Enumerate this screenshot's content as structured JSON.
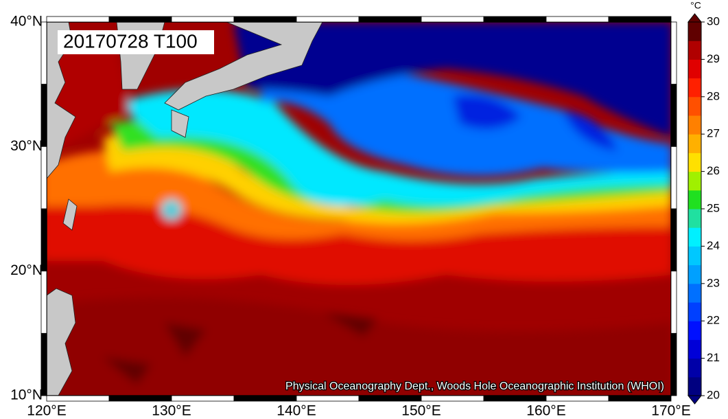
{
  "map": {
    "title": "20170728 T100",
    "credit": "Physical Oceanography Dept., Woods Hole Oceanographic Institution (WHOI)",
    "lon_labels": [
      "120°E",
      "130°E",
      "140°E",
      "150°E",
      "160°E",
      "170°E"
    ],
    "lat_labels": [
      "40°N",
      "30°N",
      "20°N",
      "10°N"
    ]
  },
  "colorbar": {
    "unit": "°C",
    "ticks": [
      20,
      21,
      22,
      23,
      24,
      25,
      26,
      27,
      28,
      29,
      30
    ],
    "colors": [
      "#000080",
      "#0000a8",
      "#0000d8",
      "#0010ff",
      "#0040ff",
      "#0070ff",
      "#00a0ff",
      "#00c8ff",
      "#00f0ff",
      "#20e0a0",
      "#20e020",
      "#a0f000",
      "#ffe000",
      "#ffb000",
      "#ff8000",
      "#ff5000",
      "#ff2000",
      "#e00000",
      "#b00000",
      "#600000"
    ],
    "range": [
      20,
      30
    ]
  }
}
